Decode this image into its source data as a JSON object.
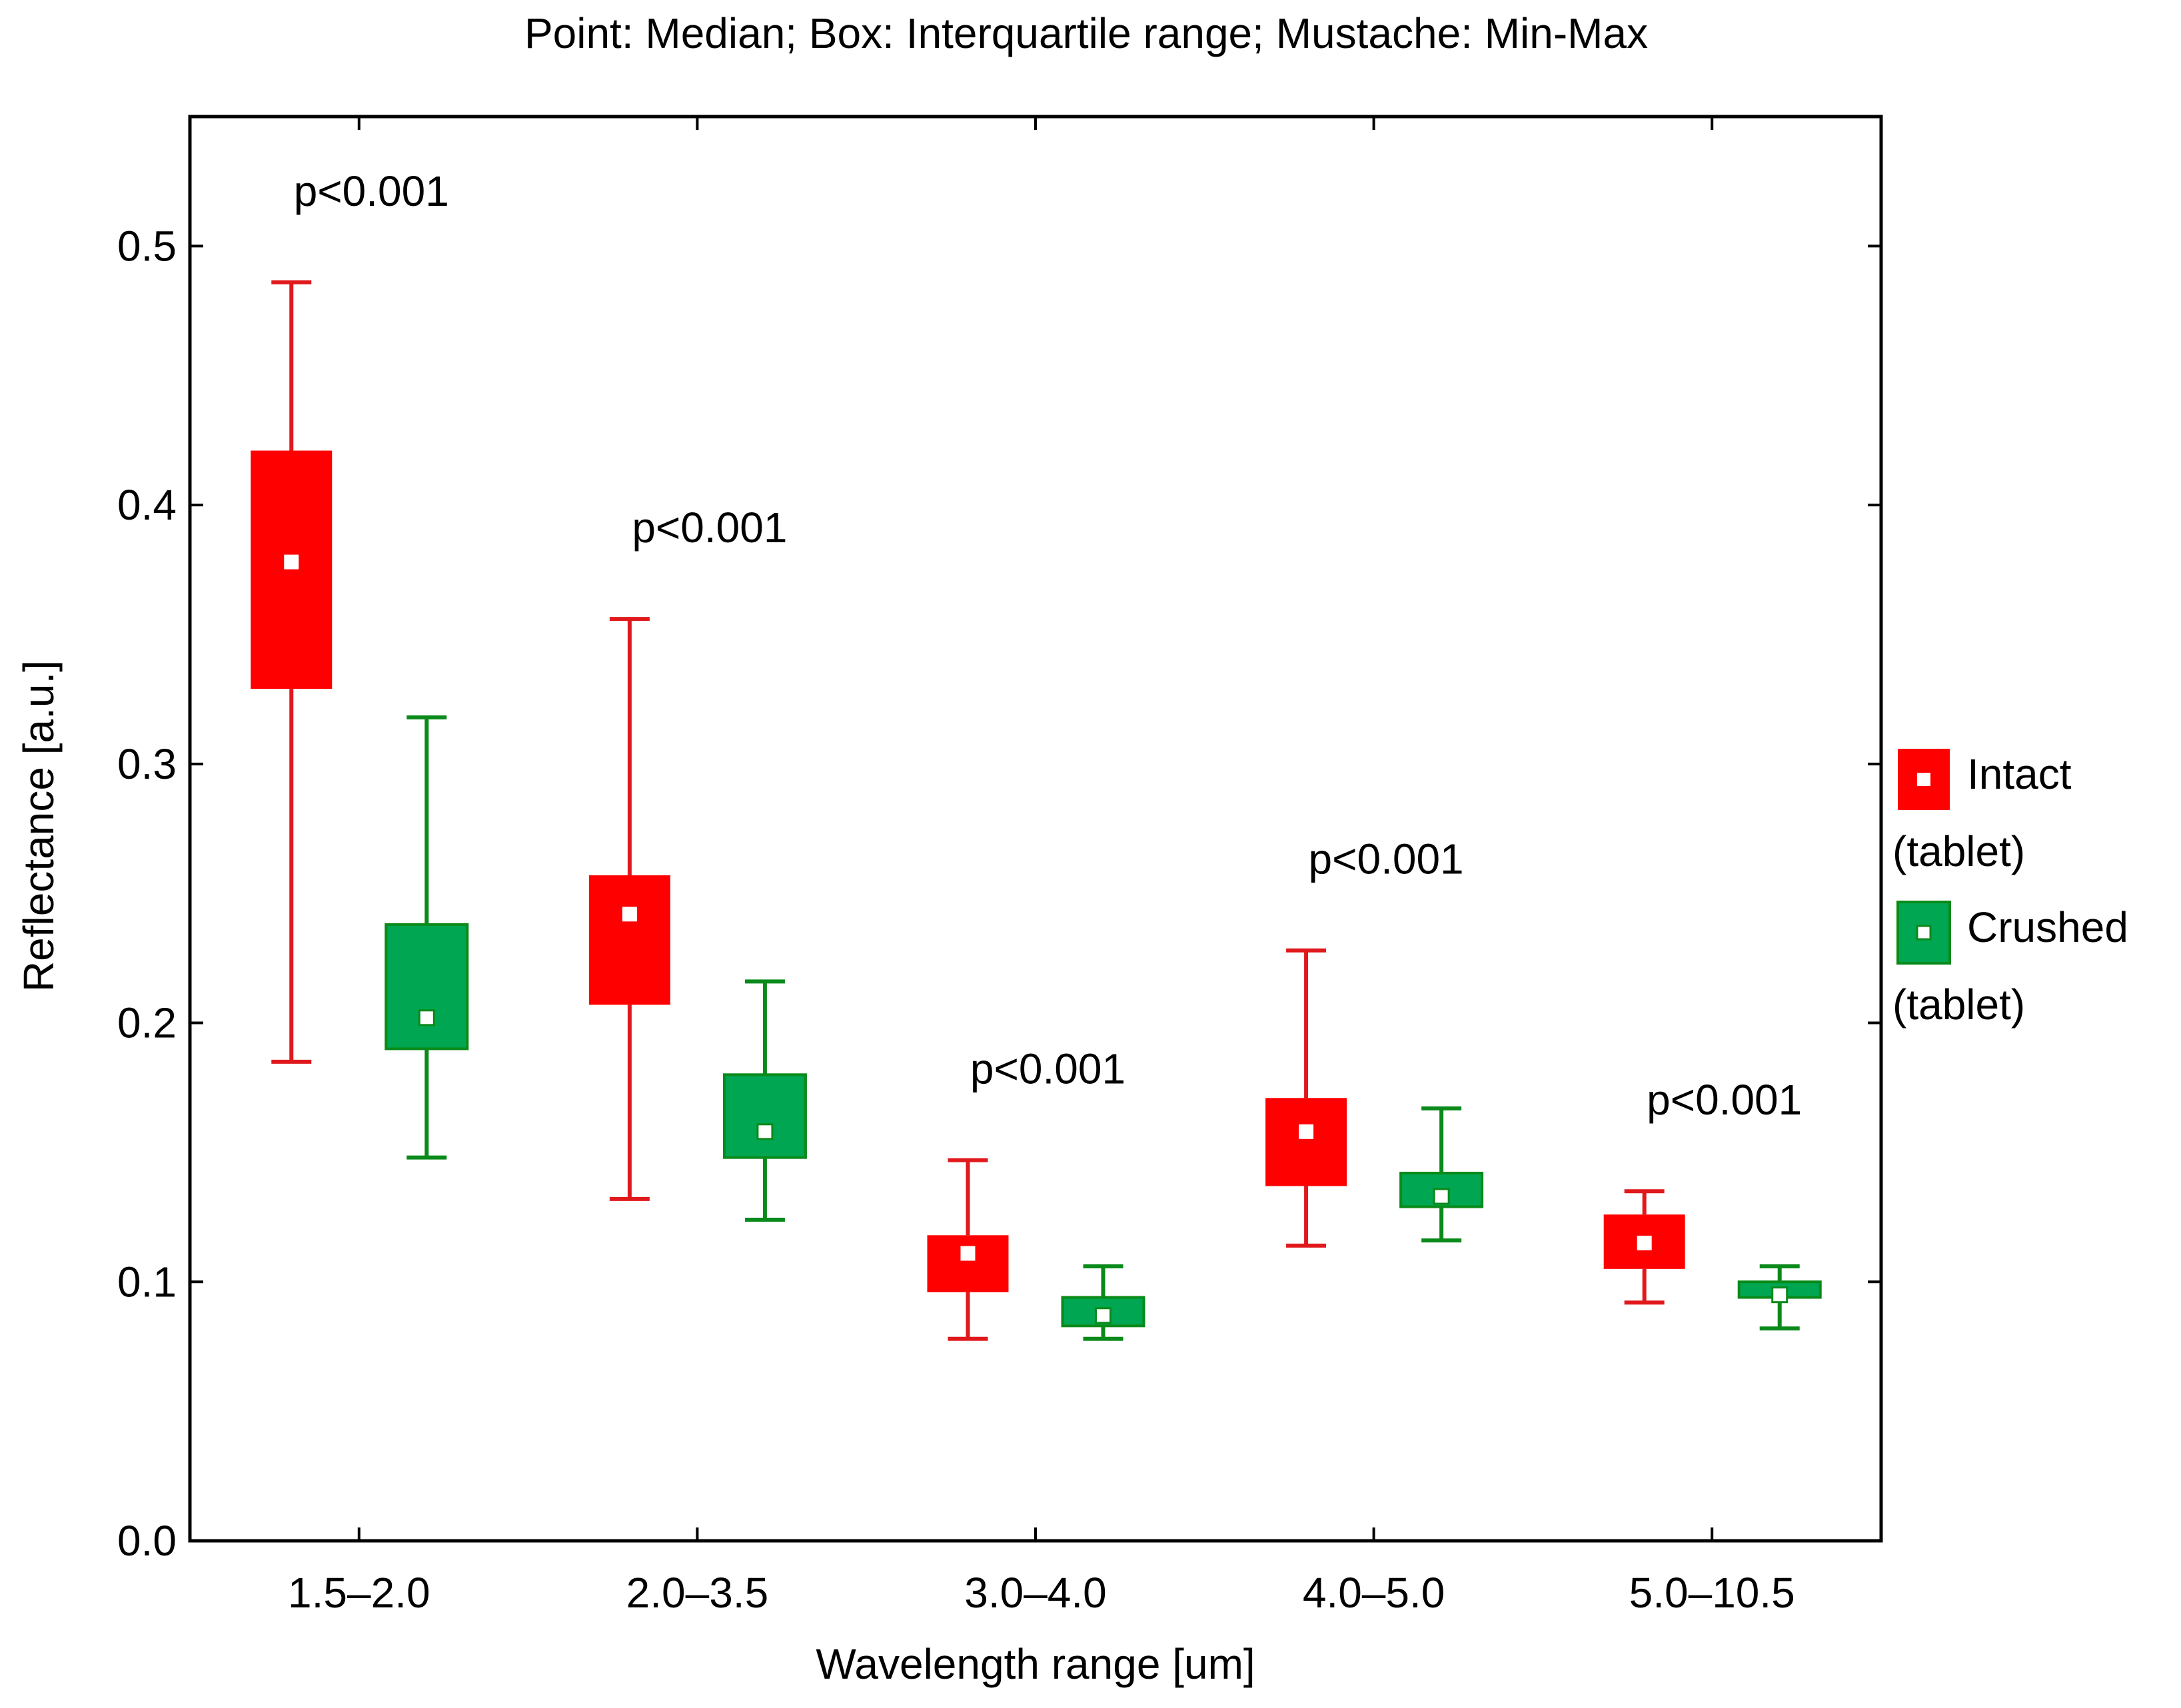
{
  "chart_data": {
    "type": "boxplot",
    "title": "Point: Median; Box: Interquartile range; Mustache: Min-Max",
    "xlabel": "Wavelength range [um]",
    "ylabel": "Reflectance [a.u.]",
    "ylim": [
      0.0,
      0.55
    ],
    "yticks": [
      "0.0",
      "0.1",
      "0.2",
      "0.3",
      "0.4",
      "0.5"
    ],
    "categories": [
      "1.5–2.0",
      "2.0–3.5",
      "3.0–4.0",
      "4.0–5.0",
      "5.0–10.5"
    ],
    "annotations": [
      "p<0.001",
      "p<0.001",
      "p<0.001",
      "p<0.001",
      "p<0.001"
    ],
    "series": [
      {
        "name": "Intact (tablet)",
        "legend_line1": "Intact",
        "legend_line2": "(tablet)",
        "color": "#ff0000",
        "whisker_color": "#e0191c",
        "stats": [
          {
            "min": 0.185,
            "q1": 0.329,
            "median": 0.378,
            "q3": 0.421,
            "max": 0.486
          },
          {
            "min": 0.132,
            "q1": 0.207,
            "median": 0.242,
            "q3": 0.257,
            "max": 0.356
          },
          {
            "min": 0.078,
            "q1": 0.096,
            "median": 0.111,
            "q3": 0.118,
            "max": 0.147
          },
          {
            "min": 0.114,
            "q1": 0.137,
            "median": 0.158,
            "q3": 0.171,
            "max": 0.228
          },
          {
            "min": 0.092,
            "q1": 0.105,
            "median": 0.115,
            "q3": 0.126,
            "max": 0.135
          }
        ]
      },
      {
        "name": "Crushed (tablet)",
        "legend_line1": "Crushed",
        "legend_line2": "(tablet)",
        "color": "#00a651",
        "whisker_color": "#0a8a1a",
        "stats": [
          {
            "min": 0.148,
            "q1": 0.19,
            "median": 0.202,
            "q3": 0.238,
            "max": 0.318
          },
          {
            "min": 0.124,
            "q1": 0.148,
            "median": 0.158,
            "q3": 0.18,
            "max": 0.216
          },
          {
            "min": 0.078,
            "q1": 0.083,
            "median": 0.087,
            "q3": 0.094,
            "max": 0.106
          },
          {
            "min": 0.116,
            "q1": 0.129,
            "median": 0.133,
            "q3": 0.142,
            "max": 0.167
          },
          {
            "min": 0.082,
            "q1": 0.094,
            "median": 0.095,
            "q3": 0.1,
            "max": 0.106
          }
        ]
      }
    ],
    "legend_position": "right"
  }
}
